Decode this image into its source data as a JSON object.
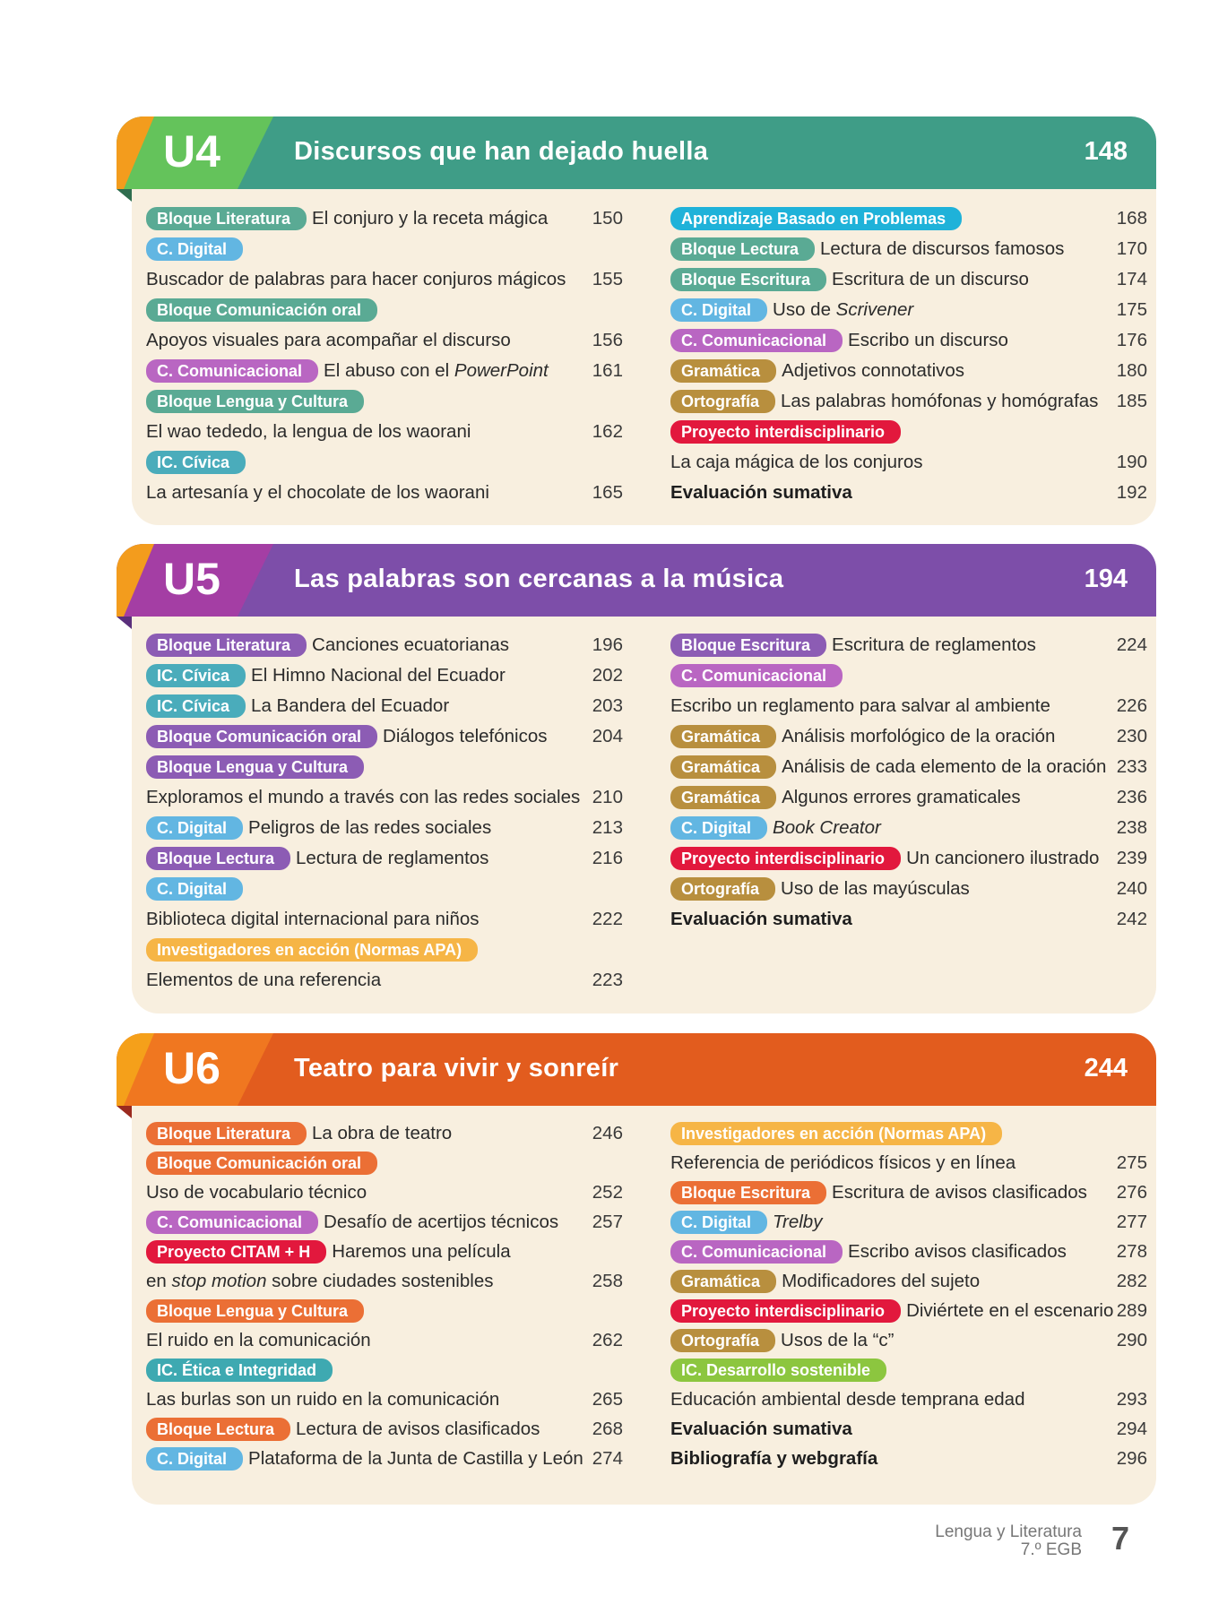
{
  "tag_colors": {
    "u4": "#5aaa94",
    "u5": "#8c5cb4",
    "u6": "#eb6f35",
    "digital": "#62b6e2",
    "comunicacional": "#b966c2",
    "gramatica": "#b88f3e",
    "proyecto": "#e2183d",
    "abp": "#1fb2d9",
    "civica": "#4aacbb",
    "investigadores": "#f6b546",
    "etica": "#3ea9b1",
    "sostenible": "#8cc63f"
  },
  "units": [
    {
      "id": "u4",
      "number": "U4",
      "title": "Discursos que han dejado huella",
      "page": "148",
      "colors": {
        "header": "#3f9d87",
        "ubox": "#64c35b",
        "orange": "#f39c1d",
        "fold": "#2f6d4f"
      },
      "left": [
        {
          "tag": "Bloque Literatura",
          "color": "u4",
          "text": "El conjuro y la receta mágica",
          "page": "150"
        },
        {
          "tag": "C. Digital",
          "color": "digital"
        },
        {
          "text": "Buscador de palabras para hacer conjuros mágicos",
          "page": "155"
        },
        {
          "tag": "Bloque Comunicación oral",
          "color": "u4"
        },
        {
          "text": "Apoyos visuales para acompañar el discurso",
          "page": "156"
        },
        {
          "tag": "C. Comunicacional",
          "color": "comunicacional",
          "text": "El abuso con el ",
          "em": "PowerPoint",
          "page": "161"
        },
        {
          "tag": "Bloque Lengua y Cultura",
          "color": "u4"
        },
        {
          "text": "El wao tededo, la lengua de los waorani",
          "page": "162"
        },
        {
          "tag": "IC. Cívica",
          "color": "civica"
        },
        {
          "text": "La artesanía y el chocolate de los waorani",
          "page": "165"
        }
      ],
      "right": [
        {
          "tag": "Aprendizaje Basado en Problemas",
          "color": "abp",
          "page": "168"
        },
        {
          "tag": "Bloque Lectura",
          "color": "u4",
          "text": "Lectura de discursos famosos",
          "page": "170"
        },
        {
          "tag": "Bloque Escritura",
          "color": "u4",
          "text": "Escritura de un discurso",
          "page": "174"
        },
        {
          "tag": "C. Digital",
          "color": "digital",
          "text": "Uso de ",
          "em": "Scrivener",
          "page": "175"
        },
        {
          "tag": "C. Comunicacional",
          "color": "comunicacional",
          "text": "Escribo un discurso",
          "page": "176"
        },
        {
          "tag": "Gramática",
          "color": "gramatica",
          "text": "Adjetivos connotativos",
          "page": "180"
        },
        {
          "tag": "Ortografía",
          "color": "gramatica",
          "text": "Las palabras homófonas y homógrafas",
          "page": "185"
        },
        {
          "tag": "Proyecto interdisciplinario",
          "color": "proyecto"
        },
        {
          "text": "La caja mágica de los conjuros",
          "page": "190"
        },
        {
          "text": "Evaluación sumativa",
          "page": "192",
          "bold": true
        }
      ]
    },
    {
      "id": "u5",
      "number": "U5",
      "title": "Las palabras son cercanas a la música",
      "page": "194",
      "colors": {
        "header": "#7d4ea9",
        "ubox": "#a43ea4",
        "orange": "#f39c1d",
        "fold": "#5a2f7c"
      },
      "left": [
        {
          "tag": "Bloque Literatura",
          "color": "u5",
          "text": "Canciones ecuatorianas",
          "page": "196"
        },
        {
          "tag": "IC. Cívica",
          "color": "civica",
          "text": "El Himno Nacional del Ecuador",
          "page": "202"
        },
        {
          "tag": "IC. Cívica",
          "color": "civica",
          "text": "La Bandera del Ecuador",
          "page": "203"
        },
        {
          "tag": "Bloque Comunicación oral",
          "color": "u5",
          "text": "Diálogos telefónicos",
          "page": "204"
        },
        {
          "tag": "Bloque Lengua y Cultura",
          "color": "u5"
        },
        {
          "text": "Exploramos el mundo a través con las redes sociales",
          "page": "210"
        },
        {
          "tag": "C. Digital",
          "color": "digital",
          "text": "Peligros de las redes sociales",
          "page": "213"
        },
        {
          "tag": "Bloque Lectura",
          "color": "u5",
          "text": "Lectura de reglamentos",
          "page": "216"
        },
        {
          "tag": "C. Digital",
          "color": "digital"
        },
        {
          "text": "Biblioteca digital internacional para niños",
          "page": "222"
        },
        {
          "tag": "Investigadores en acción (Normas APA)",
          "color": "investigadores"
        },
        {
          "text": "Elementos de una referencia",
          "page": "223"
        }
      ],
      "right": [
        {
          "tag": "Bloque Escritura",
          "color": "u5",
          "text": "Escritura de reglamentos",
          "page": "224"
        },
        {
          "tag": "C. Comunicacional",
          "color": "comunicacional"
        },
        {
          "text": "Escribo un reglamento para salvar al ambiente",
          "page": "226"
        },
        {
          "tag": "Gramática",
          "color": "gramatica",
          "text": "Análisis morfológico de la oración",
          "page": "230"
        },
        {
          "tag": "Gramática",
          "color": "gramatica",
          "text": "Análisis de cada elemento de la oración",
          "page": "233"
        },
        {
          "tag": "Gramática",
          "color": "gramatica",
          "text": "Algunos errores gramaticales",
          "page": "236"
        },
        {
          "tag": "C. Digital",
          "color": "digital",
          "em": "Book Creator",
          "page": "238"
        },
        {
          "tag": "Proyecto interdisciplinario",
          "color": "proyecto",
          "text": "Un cancionero ilustrado",
          "page": "239"
        },
        {
          "tag": "Ortografía",
          "color": "gramatica",
          "text": "Uso de las mayúsculas",
          "page": "240"
        },
        {
          "text": "Evaluación sumativa",
          "page": "242",
          "bold": true
        }
      ]
    },
    {
      "id": "u6",
      "number": "U6",
      "title": "Teatro para vivir y sonreír",
      "page": "244",
      "colors": {
        "header": "#e25c1e",
        "ubox": "#f07720",
        "orange": "#f5a01a",
        "fold": "#9b2a1f"
      },
      "left": [
        {
          "tag": "Bloque Literatura",
          "color": "u6",
          "text": "La obra de teatro",
          "page": "246"
        },
        {
          "tag": "Bloque Comunicación oral",
          "color": "u6"
        },
        {
          "text": "Uso de vocabulario técnico",
          "page": "252"
        },
        {
          "tag": "C. Comunicacional",
          "color": "comunicacional",
          "text": "Desafío de acertijos técnicos",
          "page": "257"
        },
        {
          "tag": "Proyecto CITAM + H",
          "color": "proyecto",
          "text": "Haremos una película"
        },
        {
          "text": "en ",
          "em": "stop motion",
          "after": " sobre ciudades sostenibles",
          "page": "258"
        },
        {
          "tag": "Bloque Lengua y Cultura",
          "color": "u6"
        },
        {
          "text": "El ruido en la comunicación",
          "page": "262"
        },
        {
          "tag": "IC. Ética e Integridad",
          "color": "etica"
        },
        {
          "text": "Las burlas son un ruido en la comunicación",
          "page": "265"
        },
        {
          "tag": "Bloque Lectura",
          "color": "u6",
          "text": "Lectura de avisos clasificados",
          "page": "268"
        },
        {
          "tag": "C. Digital",
          "color": "digital",
          "text": "Plataforma de la Junta de Castilla y León",
          "page": "274"
        }
      ],
      "right": [
        {
          "tag": "Investigadores en acción (Normas APA)",
          "color": "investigadores"
        },
        {
          "text": "Referencia de periódicos físicos y en línea",
          "page": "275"
        },
        {
          "tag": "Bloque Escritura",
          "color": "u6",
          "text": "Escritura de avisos clasificados",
          "page": "276"
        },
        {
          "tag": "C. Digital",
          "color": "digital",
          "em": "Trelby",
          "page": "277"
        },
        {
          "tag": "C. Comunicacional",
          "color": "comunicacional",
          "text": "Escribo avisos clasificados",
          "page": "278"
        },
        {
          "tag": "Gramática",
          "color": "gramatica",
          "text": "Modificadores del sujeto",
          "page": "282"
        },
        {
          "tag": "Proyecto interdisciplinario",
          "color": "proyecto",
          "text": "Diviértete en el escenario",
          "page": "289"
        },
        {
          "tag": "Ortografía",
          "color": "gramatica",
          "text": "Usos de la “c”",
          "page": "290"
        },
        {
          "tag": "IC. Desarrollo sostenible",
          "color": "sostenible"
        },
        {
          "text": "Educación ambiental desde temprana edad",
          "page": "293"
        },
        {
          "text": "Evaluación sumativa",
          "page": "294",
          "bold": true
        },
        {
          "text": "Bibliografía y webgrafía",
          "page": "296",
          "bold": true
        }
      ]
    }
  ],
  "footer": {
    "subject": "Lengua y Literatura",
    "grade": "7.º EGB",
    "page_number": "7"
  }
}
